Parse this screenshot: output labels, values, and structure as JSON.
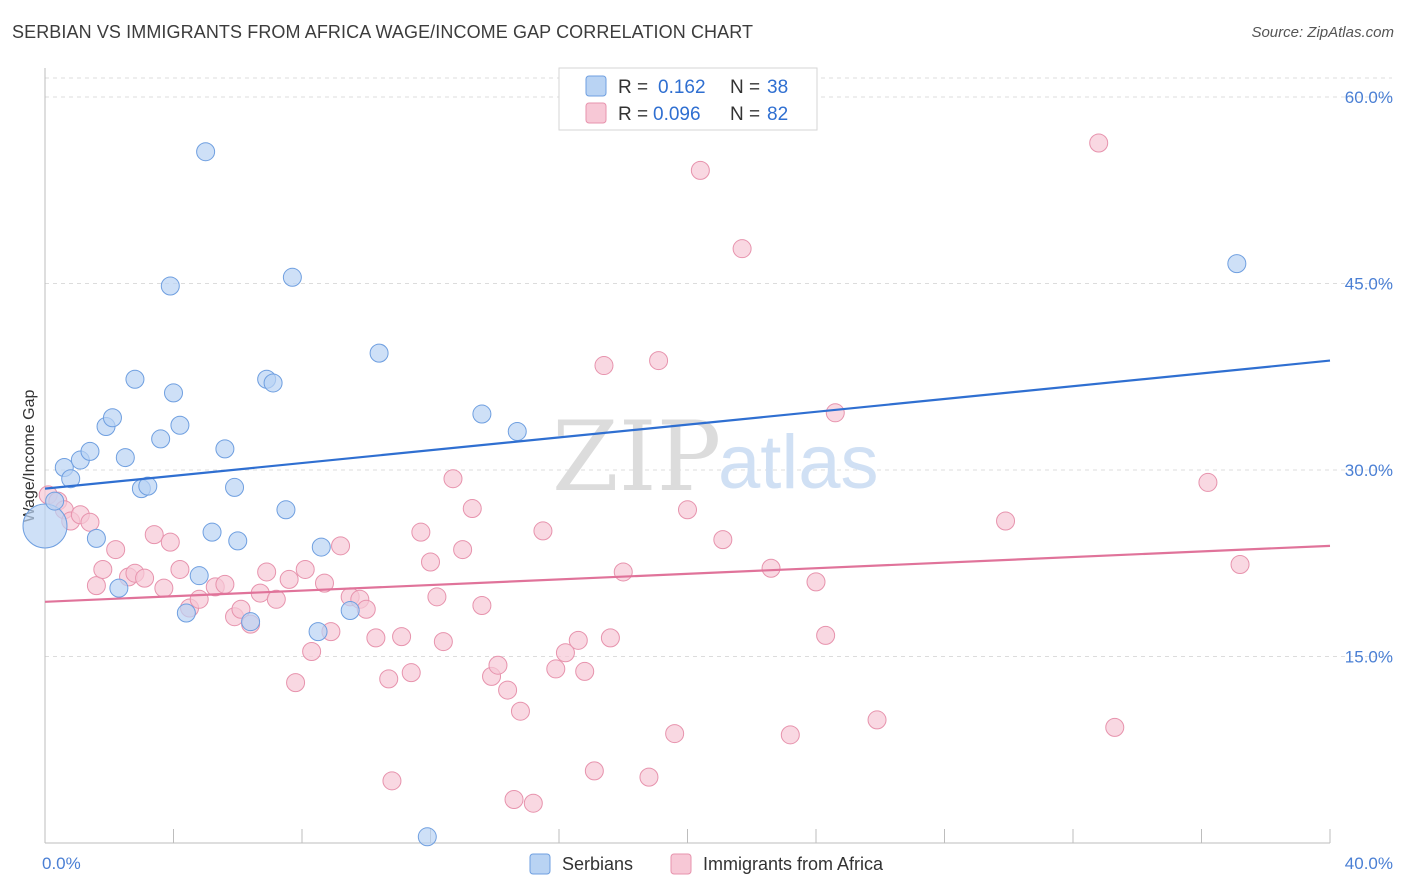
{
  "header": {
    "title": "SERBIAN VS IMMIGRANTS FROM AFRICA WAGE/INCOME GAP CORRELATION CHART",
    "source": "Source: ZipAtlas.com"
  },
  "watermark": {
    "zip": "ZIP",
    "atlas": "atlas"
  },
  "colors": {
    "serbians_fill": "#b9d3f3",
    "serbians_stroke": "#6f9fe0",
    "serbians_line": "#2f6fd1",
    "africa_fill": "#f7c8d6",
    "africa_stroke": "#e793ad",
    "africa_line": "#e0739a",
    "grid": "#dcdcdc",
    "tick_label": "#4a7fd4"
  },
  "chart_data": {
    "type": "scatter",
    "xlabel": "",
    "ylabel": "Wage/Income Gap",
    "xlim": [
      0,
      40
    ],
    "ylim": [
      0,
      60
    ],
    "x_tick_labels": [
      "0.0%",
      "40.0%"
    ],
    "y_ticks": [
      15,
      30,
      45,
      60
    ],
    "y_tick_labels": [
      "15.0%",
      "30.0%",
      "45.0%",
      "60.0%"
    ],
    "grid": true,
    "legend_position": "top-center",
    "legend": [
      {
        "label": "R =",
        "r": "0.162",
        "n_label": "N =",
        "n": "38"
      },
      {
        "label": "R =",
        "r": "0.096",
        "n_label": "N =",
        "n": "82"
      }
    ],
    "series": [
      {
        "name": "Serbians",
        "trend": {
          "x": [
            0,
            40
          ],
          "y": [
            28.5,
            38.8
          ]
        },
        "points": [
          [
            0.0,
            25.5
          ],
          [
            0.3,
            27.5
          ],
          [
            0.6,
            30.2
          ],
          [
            0.8,
            29.3
          ],
          [
            1.1,
            30.8
          ],
          [
            1.4,
            31.5
          ],
          [
            1.6,
            24.5
          ],
          [
            1.9,
            33.5
          ],
          [
            2.1,
            34.2
          ],
          [
            2.3,
            20.5
          ],
          [
            2.5,
            31.0
          ],
          [
            2.8,
            37.3
          ],
          [
            3.0,
            28.5
          ],
          [
            3.2,
            28.7
          ],
          [
            3.6,
            32.5
          ],
          [
            3.9,
            44.8
          ],
          [
            4.0,
            36.2
          ],
          [
            4.2,
            33.6
          ],
          [
            4.4,
            18.5
          ],
          [
            4.8,
            21.5
          ],
          [
            5.0,
            55.6
          ],
          [
            5.2,
            25.0
          ],
          [
            5.6,
            31.7
          ],
          [
            5.9,
            28.6
          ],
          [
            6.0,
            24.3
          ],
          [
            6.4,
            17.8
          ],
          [
            6.9,
            37.3
          ],
          [
            7.1,
            37.0
          ],
          [
            7.5,
            26.8
          ],
          [
            7.7,
            45.5
          ],
          [
            8.5,
            17.0
          ],
          [
            8.6,
            23.8
          ],
          [
            9.5,
            18.7
          ],
          [
            10.4,
            39.4
          ],
          [
            11.9,
            0.5
          ],
          [
            13.6,
            34.5
          ],
          [
            14.7,
            33.1
          ],
          [
            37.1,
            46.6
          ]
        ]
      },
      {
        "name": "Immigrants from Africa",
        "trend": {
          "x": [
            0,
            40
          ],
          "y": [
            19.4,
            23.9
          ]
        },
        "points": [
          [
            0.1,
            28.0
          ],
          [
            0.4,
            27.5
          ],
          [
            0.6,
            26.8
          ],
          [
            0.8,
            25.9
          ],
          [
            1.1,
            26.4
          ],
          [
            1.4,
            25.8
          ],
          [
            1.6,
            20.7
          ],
          [
            1.8,
            22.0
          ],
          [
            2.2,
            23.6
          ],
          [
            2.6,
            21.4
          ],
          [
            2.8,
            21.7
          ],
          [
            3.1,
            21.3
          ],
          [
            3.4,
            24.8
          ],
          [
            3.7,
            20.5
          ],
          [
            3.9,
            24.2
          ],
          [
            4.2,
            22.0
          ],
          [
            4.5,
            18.9
          ],
          [
            4.8,
            19.6
          ],
          [
            5.3,
            20.6
          ],
          [
            5.6,
            20.8
          ],
          [
            5.9,
            18.2
          ],
          [
            6.1,
            18.8
          ],
          [
            6.4,
            17.6
          ],
          [
            6.7,
            20.1
          ],
          [
            6.9,
            21.8
          ],
          [
            7.2,
            19.6
          ],
          [
            7.6,
            21.2
          ],
          [
            7.8,
            12.9
          ],
          [
            8.1,
            22.0
          ],
          [
            8.3,
            15.4
          ],
          [
            8.7,
            20.9
          ],
          [
            8.9,
            17.0
          ],
          [
            9.2,
            23.9
          ],
          [
            9.5,
            19.8
          ],
          [
            9.8,
            19.6
          ],
          [
            10.0,
            18.8
          ],
          [
            10.3,
            16.5
          ],
          [
            10.7,
            13.2
          ],
          [
            10.8,
            5.0
          ],
          [
            11.1,
            16.6
          ],
          [
            11.4,
            13.7
          ],
          [
            11.7,
            25.0
          ],
          [
            12.0,
            22.6
          ],
          [
            12.2,
            19.8
          ],
          [
            12.4,
            16.2
          ],
          [
            12.7,
            29.3
          ],
          [
            13.0,
            23.6
          ],
          [
            13.3,
            26.9
          ],
          [
            13.6,
            19.1
          ],
          [
            13.9,
            13.4
          ],
          [
            14.1,
            14.3
          ],
          [
            14.4,
            12.3
          ],
          [
            14.6,
            3.5
          ],
          [
            14.8,
            10.6
          ],
          [
            15.2,
            3.2
          ],
          [
            15.5,
            25.1
          ],
          [
            15.9,
            14.0
          ],
          [
            16.2,
            15.3
          ],
          [
            16.6,
            16.3
          ],
          [
            16.8,
            13.8
          ],
          [
            17.1,
            5.8
          ],
          [
            17.4,
            38.4
          ],
          [
            17.6,
            16.5
          ],
          [
            18.0,
            21.8
          ],
          [
            18.8,
            5.3
          ],
          [
            19.1,
            38.8
          ],
          [
            19.6,
            8.8
          ],
          [
            20.0,
            26.8
          ],
          [
            20.4,
            54.1
          ],
          [
            21.1,
            24.4
          ],
          [
            21.7,
            47.8
          ],
          [
            22.6,
            22.1
          ],
          [
            23.2,
            8.7
          ],
          [
            24.0,
            21.0
          ],
          [
            24.3,
            16.7
          ],
          [
            24.6,
            34.6
          ],
          [
            25.9,
            9.9
          ],
          [
            29.9,
            25.9
          ],
          [
            32.8,
            56.3
          ],
          [
            33.3,
            9.3
          ],
          [
            36.2,
            29.0
          ],
          [
            37.2,
            22.4
          ]
        ]
      }
    ]
  }
}
